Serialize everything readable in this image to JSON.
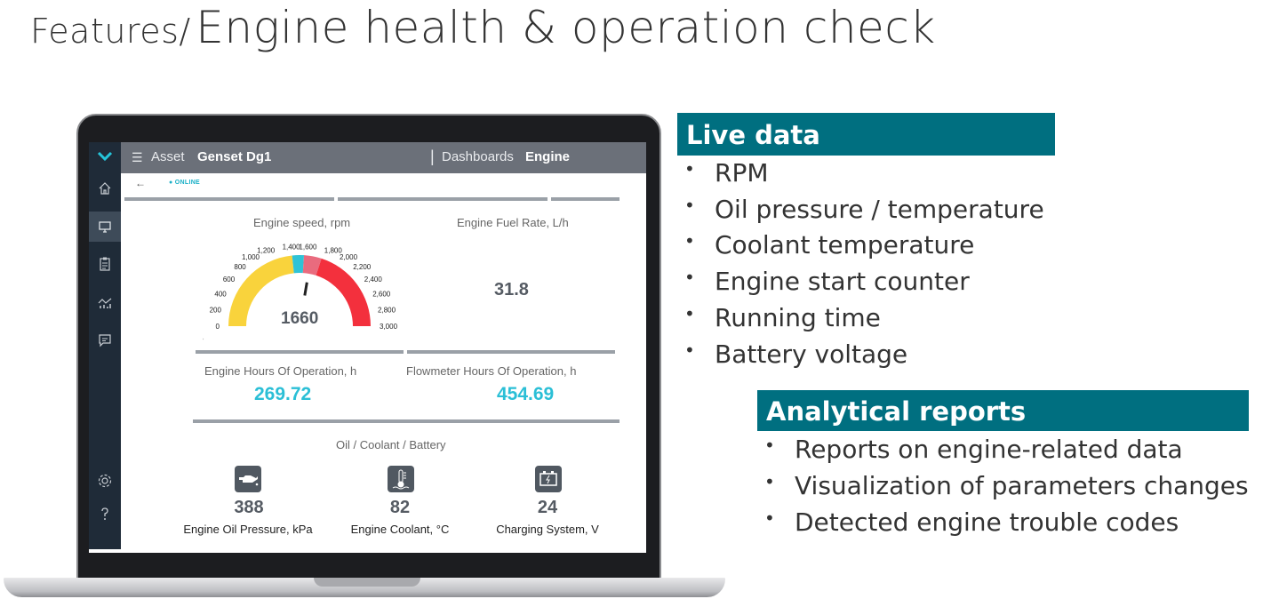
{
  "slide": {
    "title_prefix": "Features/",
    "title_main": "Engine health & operation check"
  },
  "app": {
    "topbar": {
      "asset_label": "Asset",
      "asset_value": "Genset Dg1",
      "separator": "|",
      "dashboards_label": "Dashboards",
      "dashboards_value": "Engine"
    },
    "status": "ONLINE",
    "sidebar_icons": [
      "home-icon",
      "monitor-icon",
      "clipboard-icon",
      "chart-icon",
      "chat-icon",
      "gear-icon",
      "help-icon"
    ],
    "engine_speed": {
      "title": "Engine speed, rpm",
      "value": "1660",
      "ticks": [
        "0",
        "200",
        "400",
        "600",
        "800",
        "1,000",
        "1,200",
        "1,400",
        "1,600",
        "1,800",
        "2,000",
        "2,200",
        "2,400",
        "2,600",
        "2,800",
        "3,000"
      ]
    },
    "fuel_rate": {
      "title": "Engine Fuel Rate, L/h",
      "value": "31.8"
    },
    "engine_hours": {
      "title": "Engine Hours Of Operation, h",
      "value": "269.72"
    },
    "flowmeter_hours": {
      "title": "Flowmeter Hours Of Operation, h",
      "value": "454.69"
    },
    "oil_section_title": "Oil / Coolant / Battery",
    "indicators": [
      {
        "icon": "oil-can-icon",
        "value": "388",
        "label": "Engine Oil Pressure, kPa"
      },
      {
        "icon": "thermometer-icon",
        "value": "82",
        "label": "Engine Coolant, °C"
      },
      {
        "icon": "battery-icon",
        "value": "24",
        "label": "Charging System, V"
      }
    ]
  },
  "live_data": {
    "heading": "Live data",
    "items": [
      "RPM",
      "Oil pressure / temperature",
      "Coolant temperature",
      "Engine start counter",
      "Running time",
      "Battery voltage"
    ]
  },
  "analytical": {
    "heading": "Analytical reports",
    "items": [
      "Reports on engine-related data",
      "Visualization of parameters changes",
      "Detected engine trouble codes"
    ]
  },
  "colors": {
    "accent": "#006f80",
    "cyan": "#2bbfd6",
    "sidebar": "#1f2b38",
    "topbar": "#6b7079"
  }
}
